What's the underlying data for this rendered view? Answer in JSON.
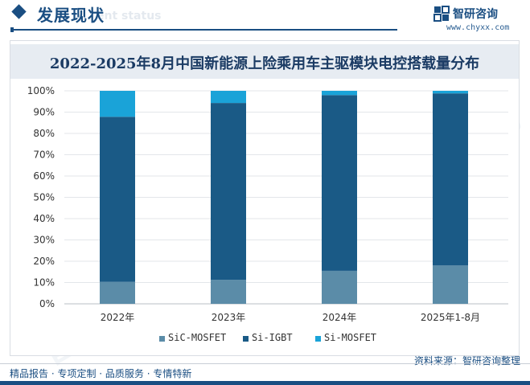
{
  "header": {
    "section_title": "发展现状",
    "section_subtitle": "ent status"
  },
  "logo": {
    "name": "智研咨询",
    "url": "www.chyxx.com"
  },
  "chart_title": "2022-2025年8月中国新能源上险乘用车主驱模块电控搭载量分布",
  "chart_data": {
    "type": "bar",
    "stacked": true,
    "title": "2022-2025年8月中国新能源上险乘用车主驱模块电控搭载量分布",
    "categories": [
      "2022年",
      "2023年",
      "2024年",
      "2025年1-8月"
    ],
    "series": [
      {
        "name": "SiC-MOSFET",
        "color": "#5b8ca8",
        "values": [
          10.3,
          11.3,
          15.5,
          18.0
        ]
      },
      {
        "name": "Si-IGBT",
        "color": "#1a5a86",
        "values": [
          77.5,
          83.0,
          82.5,
          80.8
        ]
      },
      {
        "name": "Si-MOSFET",
        "color": "#1aa3d8",
        "values": [
          12.2,
          5.7,
          2.0,
          1.2
        ]
      }
    ],
    "ylim": [
      0,
      100
    ],
    "yticks": [
      "0%",
      "10%",
      "20%",
      "30%",
      "40%",
      "50%",
      "60%",
      "70%",
      "80%",
      "90%",
      "100%"
    ],
    "grid": true,
    "legend_position": "bottom"
  },
  "footer": {
    "tagline": "精品报告 · 专项定制 · 品质服务 · 专情特新",
    "source": "资料来源：智研咨询整理"
  }
}
